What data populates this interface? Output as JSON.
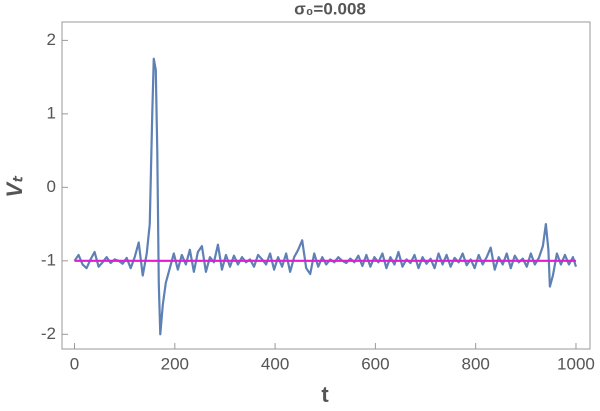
{
  "chart_data": {
    "type": "line",
    "title": "σ₀=0.008",
    "xlabel": "t",
    "ylabel": "Vₜ",
    "xlim": [
      -25,
      1028
    ],
    "ylim": [
      -2.2,
      2.25
    ],
    "xticks": [
      0,
      200,
      400,
      600,
      800,
      1000
    ],
    "yticks": [
      -2,
      -1,
      0,
      1,
      2
    ],
    "series": [
      {
        "color": "#5e81b5",
        "x": [
          0,
          8,
          16,
          24,
          32,
          40,
          48,
          56,
          64,
          72,
          80,
          88,
          96,
          104,
          112,
          120,
          128,
          136,
          144,
          150,
          155,
          158,
          162,
          165,
          168,
          171,
          176,
          182,
          190,
          198,
          206,
          214,
          222,
          230,
          238,
          246,
          254,
          262,
          270,
          278,
          286,
          294,
          302,
          310,
          318,
          326,
          334,
          342,
          350,
          358,
          366,
          374,
          382,
          390,
          398,
          406,
          414,
          422,
          430,
          438,
          446,
          454,
          462,
          470,
          478,
          486,
          494,
          502,
          510,
          518,
          526,
          534,
          542,
          550,
          558,
          566,
          574,
          582,
          590,
          598,
          606,
          614,
          622,
          630,
          638,
          646,
          654,
          662,
          670,
          678,
          686,
          694,
          702,
          710,
          718,
          726,
          734,
          742,
          750,
          758,
          766,
          774,
          782,
          790,
          798,
          806,
          814,
          822,
          830,
          838,
          846,
          854,
          862,
          870,
          878,
          886,
          894,
          902,
          910,
          918,
          926,
          934,
          940,
          945,
          948,
          954,
          962,
          970,
          978,
          986,
          994,
          1000
        ],
        "values": [
          -1.0,
          -0.92,
          -1.05,
          -1.1,
          -0.98,
          -0.88,
          -1.08,
          -1.02,
          -0.95,
          -1.03,
          -0.98,
          -1.0,
          -1.04,
          -0.96,
          -1.1,
          -0.95,
          -0.75,
          -1.2,
          -0.9,
          -0.5,
          1.0,
          1.75,
          1.6,
          0.5,
          -1.3,
          -2.0,
          -1.6,
          -1.3,
          -1.1,
          -0.9,
          -1.12,
          -0.92,
          -1.05,
          -0.85,
          -1.15,
          -0.88,
          -0.8,
          -1.15,
          -0.95,
          -1.02,
          -0.78,
          -1.12,
          -0.92,
          -1.08,
          -0.93,
          -1.05,
          -0.95,
          -1.02,
          -0.98,
          -1.08,
          -0.92,
          -0.98,
          -1.05,
          -0.9,
          -1.12,
          -0.95,
          -1.08,
          -0.9,
          -1.15,
          -0.95,
          -0.85,
          -0.72,
          -1.1,
          -1.18,
          -0.9,
          -1.08,
          -0.95,
          -1.05,
          -0.98,
          -1.02,
          -0.95,
          -1.0,
          -1.03,
          -0.97,
          -1.02,
          -0.93,
          -1.07,
          -0.92,
          -1.08,
          -0.95,
          -1.02,
          -0.9,
          -1.1,
          -0.95,
          -1.05,
          -0.88,
          -1.08,
          -0.98,
          -1.03,
          -0.92,
          -1.1,
          -0.95,
          -1.04,
          -0.97,
          -1.1,
          -0.9,
          -1.05,
          -0.92,
          -1.08,
          -0.96,
          -1.02,
          -0.9,
          -1.06,
          -0.98,
          -1.1,
          -0.92,
          -1.05,
          -0.95,
          -0.82,
          -1.12,
          -0.95,
          -1.05,
          -0.9,
          -1.1,
          -0.93,
          -1.02,
          -0.97,
          -1.08,
          -0.9,
          -1.05,
          -0.96,
          -0.8,
          -0.5,
          -0.85,
          -1.35,
          -1.2,
          -0.9,
          -1.05,
          -0.92,
          -1.05,
          -0.95,
          -1.08
        ]
      },
      {
        "color": "#e01bd0",
        "x": [
          0,
          1000
        ],
        "values": [
          -1,
          -1
        ]
      }
    ]
  }
}
